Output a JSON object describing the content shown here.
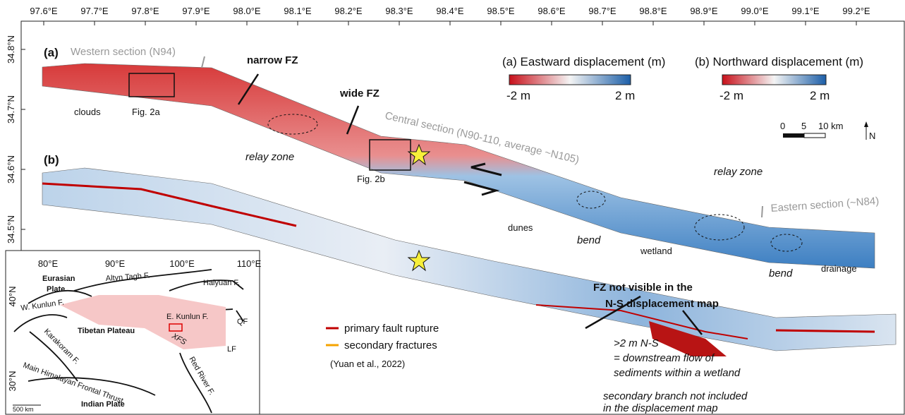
{
  "longitude_labels": [
    "97.6°E",
    "97.7°E",
    "97.8°E",
    "97.9°E",
    "98.0°E",
    "98.1°E",
    "98.2°E",
    "98.3°E",
    "98.4°E",
    "98.5°E",
    "98.6°E",
    "98.7°E",
    "98.8°E",
    "98.9°E",
    "99.0°E",
    "99.1°E",
    "99.2°E"
  ],
  "latitude_labels": [
    "34.8°N",
    "34.7°N",
    "34.6°N",
    "34.5°N"
  ],
  "panels": {
    "a": "(a)",
    "b": "(b)"
  },
  "annotations": {
    "western_section": "Western section (N94)",
    "narrow_fz": "narrow FZ",
    "wide_fz": "wide FZ",
    "clouds": "clouds",
    "fig_2a": "Fig. 2a",
    "relay_zone_west": "relay zone",
    "central_section": "Central section (N90-110, average ~N105)",
    "fig_2b": "Fig. 2b",
    "dunes": "dunes",
    "bend_center": "bend",
    "wetland": "wetland",
    "relay_zone_east": "relay zone",
    "bend_east": "bend",
    "drainage": "drainage",
    "eastern_section": "Eastern section (~N84)",
    "fz_not_visible": [
      "FZ not visible in the",
      "N-S displacement map"
    ],
    "downstream_flow": [
      ">2 m N-S",
      "= downstream flow of",
      "sediments within a wetland"
    ],
    "secondary_branch": [
      "secondary branch not included",
      "in the displacement map"
    ]
  },
  "colorbars": [
    {
      "title": "(a) Eastward displacement (m)",
      "min_label": "-2 m",
      "max_label": "2 m"
    },
    {
      "title": "(b) Northward displacement (m)",
      "min_label": "-2 m",
      "max_label": "2 m"
    }
  ],
  "scale_bar": {
    "labels": [
      "0",
      "5",
      "10 km"
    ],
    "north": "N"
  },
  "legend": {
    "items": [
      {
        "label": "primary fault rupture",
        "color": "#c00000"
      },
      {
        "label": "secondary fractures",
        "color": "#f5a300"
      }
    ],
    "source": "(Yuan et al., 2022)"
  },
  "inset": {
    "lon_labels": [
      "80°E",
      "90°E",
      "100°E",
      "110°E"
    ],
    "lat_labels": [
      "40°N",
      "30°N"
    ],
    "labels": [
      "Eurasian",
      "Plate",
      "Altyn Tagh F.",
      "Haiyuan F.",
      "W. Kunlun F.",
      "E. Kunlun F.",
      "QF",
      "Tibetan Plateau",
      "XFS",
      "Karakoram F.",
      "LF",
      "Main Himalayan Frontal Thrust",
      "Red River F.",
      "Indian Plate"
    ],
    "scale": "500 km"
  }
}
